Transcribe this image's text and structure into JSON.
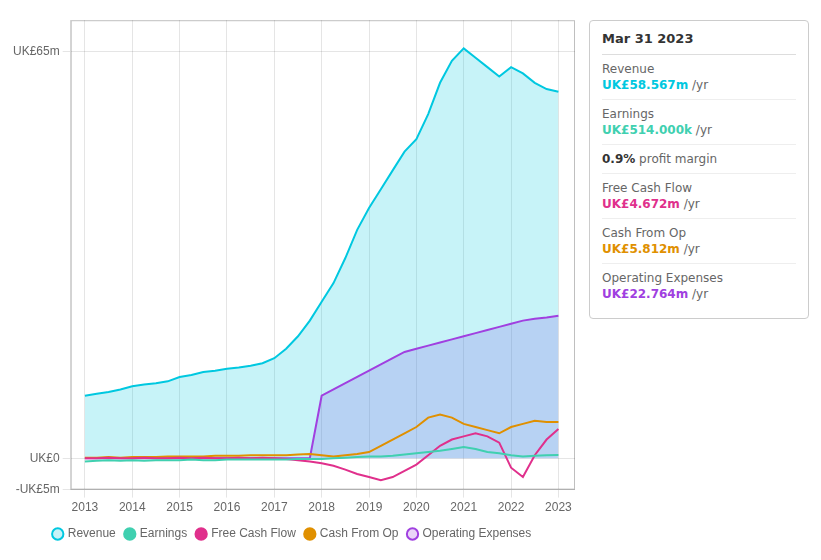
{
  "chart_data": {
    "type": "line",
    "x": [
      2013,
      2013.25,
      2013.5,
      2013.75,
      2014,
      2014.25,
      2014.5,
      2014.75,
      2015,
      2015.25,
      2015.5,
      2015.75,
      2016,
      2016.25,
      2016.5,
      2016.75,
      2017,
      2017.25,
      2017.5,
      2017.75,
      2018,
      2018.25,
      2018.5,
      2018.75,
      2019,
      2019.25,
      2019.5,
      2019.75,
      2020,
      2020.25,
      2020.5,
      2020.75,
      2021,
      2021.25,
      2021.5,
      2021.75,
      2022,
      2022.25,
      2022.5,
      2022.75,
      2023
    ],
    "series": [
      {
        "name": "Revenue",
        "color": "#00c8e0",
        "type": "area",
        "values": [
          10.0,
          10.3,
          10.6,
          11.0,
          11.5,
          11.8,
          12.0,
          12.3,
          13.0,
          13.3,
          13.8,
          14.0,
          14.3,
          14.5,
          14.8,
          15.2,
          16.0,
          17.5,
          19.5,
          22.0,
          25.0,
          28.0,
          32.0,
          36.5,
          40.0,
          43.0,
          46.0,
          49.0,
          51.0,
          55.0,
          60.0,
          63.5,
          65.5,
          64.0,
          62.5,
          61.0,
          62.5,
          61.5,
          60.0,
          59.0,
          58.567
        ]
      },
      {
        "name": "Earnings",
        "color": "#40d0b0",
        "type": "line",
        "values": [
          -0.5,
          -0.4,
          -0.3,
          -0.4,
          -0.3,
          -0.4,
          -0.3,
          -0.3,
          -0.3,
          -0.2,
          -0.3,
          -0.3,
          -0.2,
          -0.2,
          -0.2,
          -0.2,
          -0.2,
          -0.2,
          -0.1,
          -0.1,
          -0.1,
          0.0,
          0.1,
          0.2,
          0.3,
          0.3,
          0.4,
          0.6,
          0.8,
          1.0,
          1.2,
          1.5,
          1.8,
          1.5,
          1.0,
          0.8,
          0.5,
          0.3,
          0.4,
          0.5,
          0.514
        ]
      },
      {
        "name": "Free Cash Flow",
        "color": "#e0308c",
        "type": "line",
        "values": [
          0.0,
          0.0,
          0.1,
          0.0,
          0.0,
          0.1,
          0.0,
          0.0,
          0.1,
          0.0,
          0.1,
          0.0,
          0.0,
          0.1,
          0.0,
          0.1,
          0.0,
          -0.1,
          -0.3,
          -0.5,
          -0.8,
          -1.2,
          -1.8,
          -2.5,
          -3.0,
          -3.5,
          -3.0,
          -2.0,
          -1.0,
          0.5,
          2.0,
          3.0,
          3.5,
          4.0,
          3.5,
          2.5,
          -1.5,
          -3.0,
          0.5,
          3.0,
          4.672
        ]
      },
      {
        "name": "Cash From Op",
        "color": "#e09000",
        "type": "line",
        "values": [
          0.1,
          0.1,
          0.2,
          0.1,
          0.2,
          0.2,
          0.2,
          0.3,
          0.3,
          0.3,
          0.3,
          0.4,
          0.4,
          0.4,
          0.5,
          0.5,
          0.5,
          0.5,
          0.6,
          0.7,
          0.5,
          0.3,
          0.5,
          0.7,
          1.0,
          2.0,
          3.0,
          4.0,
          5.0,
          6.5,
          7.0,
          6.5,
          5.5,
          5.0,
          4.5,
          4.0,
          5.0,
          5.5,
          6.0,
          5.8,
          5.812
        ]
      },
      {
        "name": "Operating Expenses",
        "color": "#a040e0",
        "type": "area",
        "values": [
          0,
          0,
          0,
          0,
          0,
          0,
          0,
          0,
          0,
          0,
          0,
          0,
          0,
          0,
          0,
          0,
          0,
          0,
          0,
          0,
          10.0,
          11.0,
          12.0,
          13.0,
          14.0,
          15.0,
          16.0,
          17.0,
          17.5,
          18.0,
          18.5,
          19.0,
          19.5,
          20.0,
          20.5,
          21.0,
          21.5,
          22.0,
          22.3,
          22.5,
          22.764
        ]
      }
    ],
    "xlim": [
      2012.7,
      2023.35
    ],
    "xticks": [
      2013,
      2014,
      2015,
      2016,
      2017,
      2018,
      2019,
      2020,
      2021,
      2022,
      2023
    ],
    "ylim": [
      -5,
      70
    ],
    "yticks": [
      {
        "value": -5,
        "label": "-UK£5m"
      },
      {
        "value": 0,
        "label": "UK£0"
      },
      {
        "value": 65,
        "label": "UK£65m"
      }
    ],
    "grid": true,
    "legend": "bottom",
    "annotations": [
      {
        "text": "Mar 31 2023"
      },
      {
        "label": "Revenue",
        "text": "UK£58.567m",
        "suffix": " /yr",
        "color": "#00c8e0"
      },
      {
        "label": "Earnings",
        "text": "UK£514.000k",
        "suffix": " /yr",
        "color": "#40d0b0"
      },
      {
        "text": "0.9%",
        "suffix": " profit margin"
      },
      {
        "label": "Free Cash Flow",
        "text": "UK£4.672m",
        "suffix": " /yr",
        "color": "#e0308c"
      },
      {
        "label": "Cash From Op",
        "text": "UK£5.812m",
        "suffix": " /yr",
        "color": "#e09000"
      },
      {
        "label": "Operating Expenses",
        "text": "UK£22.764m",
        "suffix": " /yr",
        "color": "#a040e0"
      }
    ]
  }
}
